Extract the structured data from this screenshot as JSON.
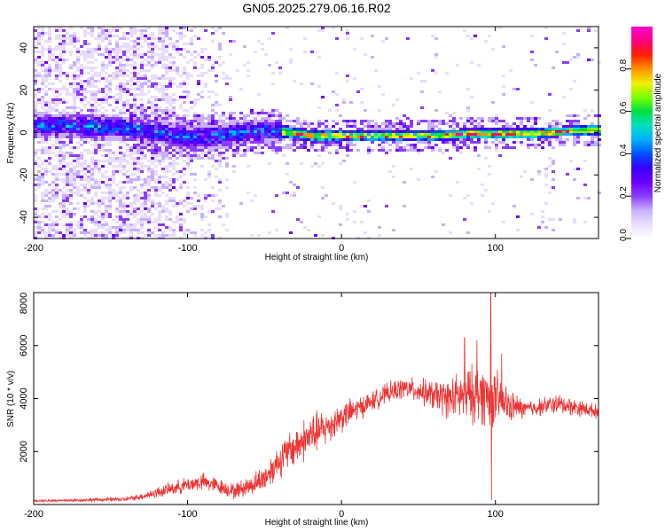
{
  "figure_title": "GN05.2025.279.06.16.R02",
  "chart_data": [
    {
      "type": "heatmap",
      "title": "GN05.2025.279.06.16.R02",
      "xlabel": "Height of straight line (km)",
      "ylabel": "Frequency (Hz)",
      "xlim": [
        -200,
        167
      ],
      "ylim": [
        -50,
        50
      ],
      "xticks": [
        -200,
        -100,
        0,
        100
      ],
      "yticks": [
        -40,
        -20,
        0,
        20,
        40
      ],
      "colorbar": {
        "label": "Normalized spectral amplitude",
        "range": [
          0.0,
          1.0
        ],
        "ticks": [
          0.0,
          0.2,
          0.4,
          0.6,
          0.8
        ],
        "tick_labels": [
          "0.0",
          "0.2",
          "0.4",
          "0.6",
          "0.8"
        ],
        "colors": [
          "#ffffff",
          "#e9ddff",
          "#c8b0ff",
          "#8b3dff",
          "#6a00ff",
          "#3300ff",
          "#0050ff",
          "#00b0ff",
          "#00e0c0",
          "#00e040",
          "#7cff00",
          "#f0f000",
          "#ff9000",
          "#ff2000",
          "#ff0080",
          "#ff00d0"
        ]
      },
      "ridge": {
        "x": [
          -200,
          -150,
          -120,
          -100,
          -80,
          -60,
          -40,
          -20,
          0,
          20,
          40,
          60,
          80,
          100,
          120,
          140,
          167
        ],
        "freq": [
          4,
          3,
          1,
          -2,
          -1,
          1,
          1,
          -1,
          -1,
          -1,
          -1,
          -1,
          0,
          0,
          0,
          1,
          2
        ]
      }
    },
    {
      "type": "line",
      "xlabel": "Height of straight line (km)",
      "ylabel": "SNR (10 * v/v)",
      "xlim": [
        -200,
        167
      ],
      "ylim": [
        0,
        8000
      ],
      "xticks": [
        -200,
        -100,
        0,
        100
      ],
      "yticks": [
        2000,
        4000,
        6000,
        8000
      ],
      "series": [
        {
          "name": "SNR",
          "color": "#ee3333",
          "x": [
            -200,
            -180,
            -160,
            -140,
            -130,
            -120,
            -110,
            -100,
            -90,
            -80,
            -70,
            -60,
            -50,
            -40,
            -30,
            -20,
            -10,
            0,
            10,
            20,
            30,
            40,
            50,
            60,
            70,
            80,
            90,
            100,
            110,
            120,
            130,
            140,
            150,
            167
          ],
          "y": [
            150,
            150,
            180,
            200,
            300,
            450,
            600,
            750,
            850,
            700,
            500,
            700,
            1000,
            1700,
            2200,
            2600,
            2900,
            3300,
            3600,
            3900,
            4200,
            4400,
            4300,
            4100,
            4000,
            4100,
            4200,
            4000,
            3700,
            3600,
            3700,
            3800,
            3700,
            3500
          ],
          "spread": [
            60,
            60,
            80,
            100,
            150,
            250,
            300,
            350,
            400,
            350,
            350,
            450,
            600,
            800,
            900,
            1000,
            800,
            700,
            550,
            450,
            450,
            500,
            550,
            700,
            900,
            1200,
            1400,
            1300,
            700,
            400,
            400,
            450,
            400,
            300
          ],
          "spikes": [
            {
              "x": 80,
              "y": 6300
            },
            {
              "x": 88,
              "y": 6200
            },
            {
              "x": 97,
              "y": 8000
            },
            {
              "x": 97.5,
              "y": 150
            },
            {
              "x": 104,
              "y": 5700
            }
          ]
        }
      ]
    }
  ]
}
